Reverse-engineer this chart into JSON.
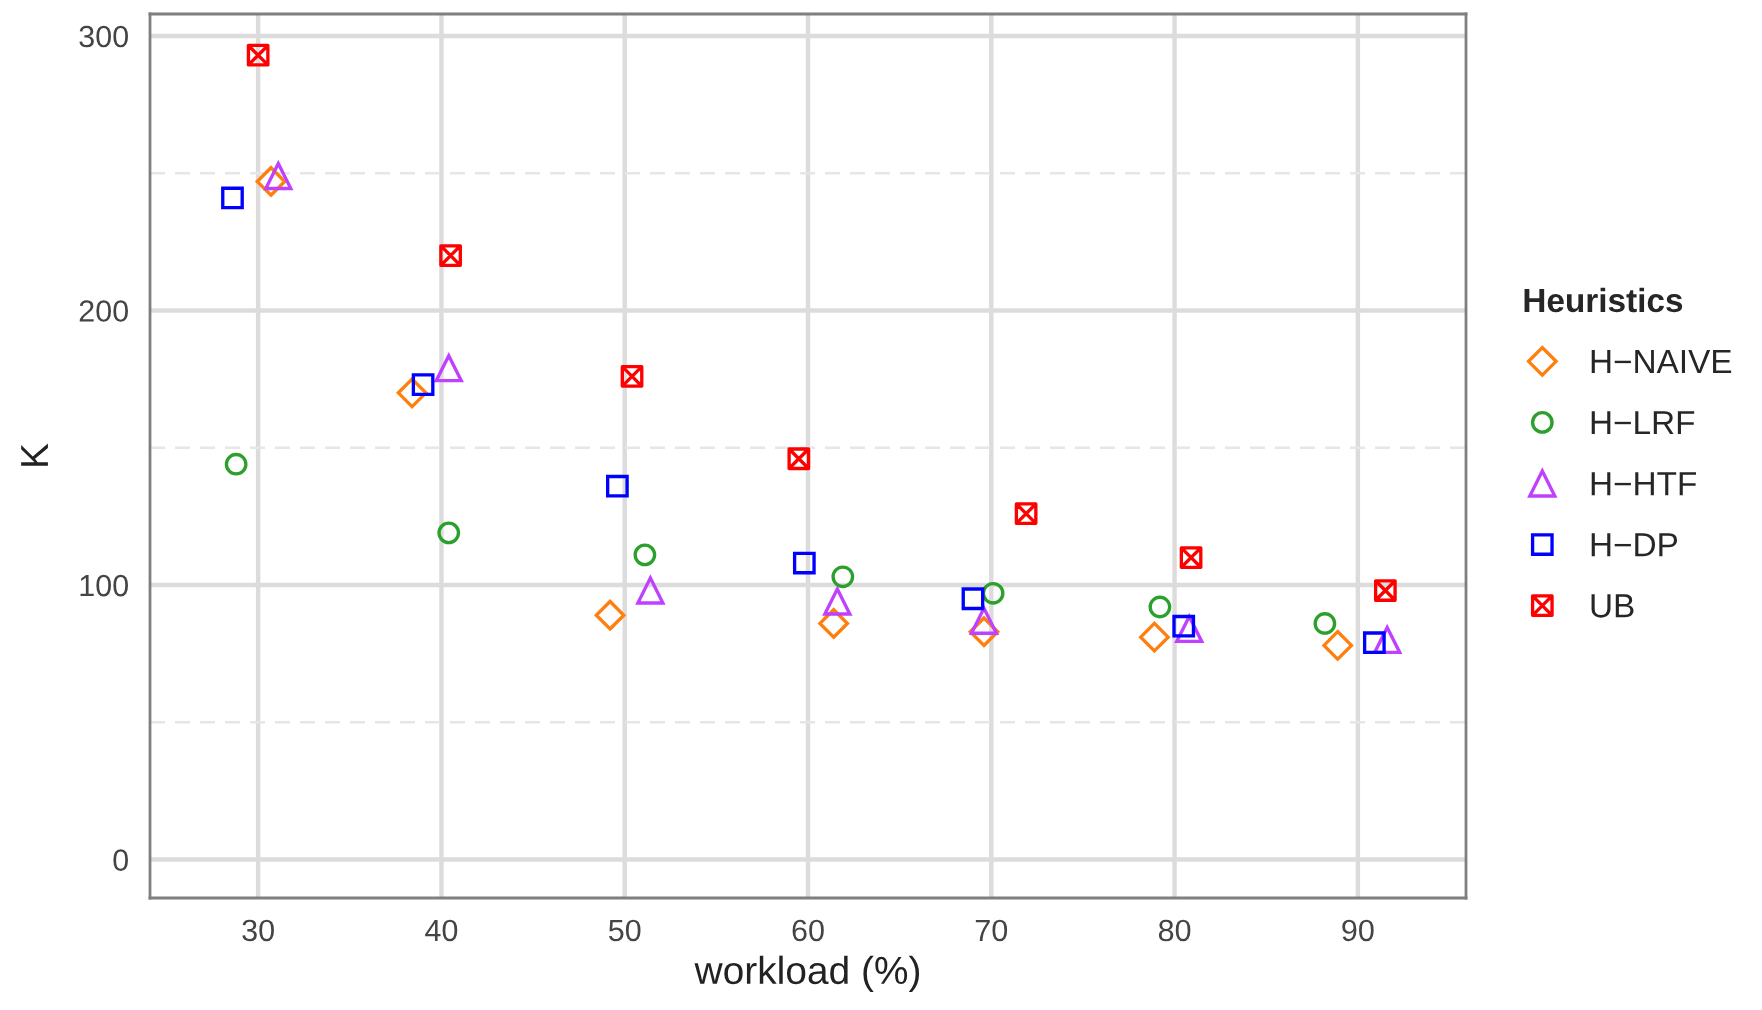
{
  "chart_data": {
    "type": "scatter",
    "xlabel": "workload (%)",
    "ylabel": "K",
    "legend_title": "Heuristics",
    "xlim": [
      24.1,
      95.9
    ],
    "ylim": [
      -14,
      308
    ],
    "xticks": [
      30,
      40,
      50,
      60,
      70,
      80,
      90
    ],
    "yticks": [
      0,
      100,
      200,
      300
    ],
    "grid": true,
    "legend": "right",
    "series": [
      {
        "name": "H−NAIVE",
        "color": "#ff7f0e",
        "marker": "diamond",
        "x": [
          30.7,
          38.4,
          49.2,
          61.4,
          69.6,
          78.9,
          88.9
        ],
        "values": [
          247,
          170,
          89,
          86,
          83,
          81,
          78
        ]
      },
      {
        "name": "H−LRF",
        "color": "#2ca02c",
        "marker": "circle",
        "x": [
          28.8,
          40.4,
          51.1,
          61.9,
          70.1,
          79.2,
          88.2
        ],
        "values": [
          144,
          119,
          111,
          103,
          97,
          92,
          86
        ]
      },
      {
        "name": "H−HTF",
        "color": "#bf40ff",
        "marker": "triangle",
        "x": [
          31.1,
          40.4,
          51.4,
          61.6,
          69.6,
          80.8,
          91.6
        ],
        "values": [
          249,
          179,
          98,
          94,
          87,
          84,
          80
        ]
      },
      {
        "name": "H−DP",
        "color": "#0000ff",
        "marker": "square",
        "x": [
          28.6,
          39.0,
          49.6,
          59.8,
          69.0,
          80.5,
          90.9
        ],
        "values": [
          241,
          173,
          136,
          108,
          95,
          85,
          79
        ]
      },
      {
        "name": "UB",
        "color": "#ff0000",
        "marker": "cross",
        "x": [
          30.0,
          40.5,
          50.4,
          59.5,
          71.9,
          80.9,
          91.5
        ],
        "values": [
          293,
          220,
          176,
          146,
          126,
          110,
          98
        ]
      }
    ]
  }
}
